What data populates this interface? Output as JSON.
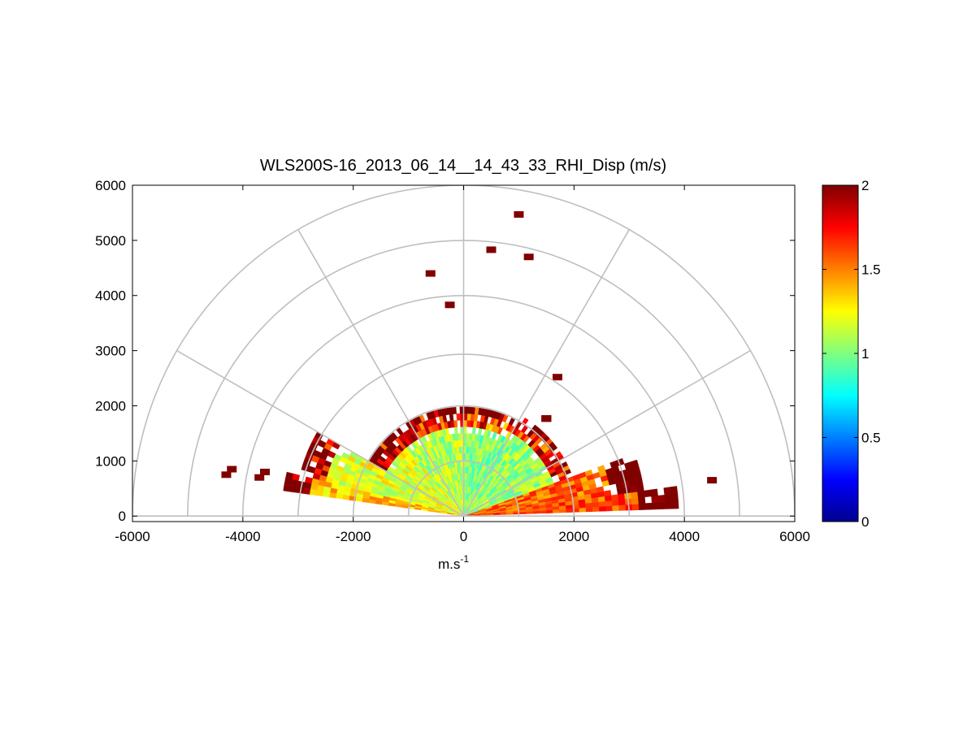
{
  "chart_data": {
    "type": "heatmap",
    "subtype": "polar-rhi-scan",
    "title": "WLS200S-16_2013_06_14__14_43_33_RHI_Disp (m/s)",
    "xlabel_base": "m.s",
    "xlabel_sup": "-1",
    "ylabel": "",
    "xlim": [
      -6000,
      6000
    ],
    "ylim": [
      -100,
      6000
    ],
    "x_ticks": [
      -6000,
      -4000,
      -2000,
      0,
      2000,
      4000,
      6000
    ],
    "x_tick_labels": [
      "-6000",
      "-4000",
      "-2000",
      "0",
      "2000",
      "4000",
      "6000"
    ],
    "y_ticks": [
      0,
      1000,
      2000,
      3000,
      4000,
      5000,
      6000
    ],
    "y_tick_labels": [
      "0",
      "1000",
      "2000",
      "3000",
      "4000",
      "5000",
      "6000"
    ],
    "polar_grid": {
      "ranges": [
        1000,
        2000,
        3000,
        4000,
        5000,
        6000
      ],
      "spokes_deg": [
        0,
        30,
        60,
        90,
        120,
        150,
        180
      ],
      "color": "#bfbfbf"
    },
    "colorbar": {
      "colormap": "jet",
      "min": 0,
      "max": 2,
      "ticks": [
        0,
        0.5,
        1,
        1.5,
        2
      ],
      "tick_labels": [
        "0",
        "0.5",
        "1",
        "1.5",
        "2"
      ]
    },
    "scan": {
      "max_range_dense": 2100,
      "elevation_sectors_deg": [
        {
          "from": 2,
          "to": 8,
          "max_range": 3800,
          "mean": 1.6
        },
        {
          "from": 8,
          "to": 20,
          "max_range": 3200,
          "mean": 1.55
        },
        {
          "from": 20,
          "to": 60,
          "max_range": 2100,
          "mean": 1.05
        },
        {
          "from": 60,
          "to": 90,
          "max_range": 1900,
          "mean": 1.0
        },
        {
          "from": 90,
          "to": 130,
          "max_range": 1900,
          "mean": 1.1
        },
        {
          "from": 130,
          "to": 150,
          "max_range": 1900,
          "mean": 1.2
        },
        {
          "from": 150,
          "to": 166,
          "max_range": 3000,
          "mean": 1.2
        },
        {
          "from": 166,
          "to": 172,
          "max_range": 3300,
          "mean": 1.35
        }
      ]
    },
    "high_value_cells": [
      {
        "x": 1000,
        "y": 5470,
        "value": 2
      },
      {
        "x": 500,
        "y": 4830,
        "value": 2
      },
      {
        "x": 1180,
        "y": 4700,
        "value": 2
      },
      {
        "x": -600,
        "y": 4400,
        "value": 2
      },
      {
        "x": -250,
        "y": 3830,
        "value": 2
      },
      {
        "x": 1700,
        "y": 2520,
        "value": 2
      },
      {
        "x": 4500,
        "y": 650,
        "value": 2
      },
      {
        "x": -4200,
        "y": 850,
        "value": 2
      },
      {
        "x": -4300,
        "y": 750,
        "value": 2
      },
      {
        "x": -3600,
        "y": 800,
        "value": 2
      },
      {
        "x": -3700,
        "y": 700,
        "value": 2
      },
      {
        "x": 1500,
        "y": 1770,
        "value": 2
      },
      {
        "x": 1500,
        "y": 1770,
        "value": 2
      },
      {
        "x": 1500,
        "y": 1770,
        "value": 2
      },
      {
        "x": 1500,
        "y": 1770,
        "value": 2
      },
      {
        "x": 1500,
        "y": 1770,
        "value": 2
      },
      {
        "x": 1500,
        "y": 1770,
        "value": 2
      },
      {
        "x": 1500,
        "y": 1770,
        "value": 2
      }
    ]
  }
}
